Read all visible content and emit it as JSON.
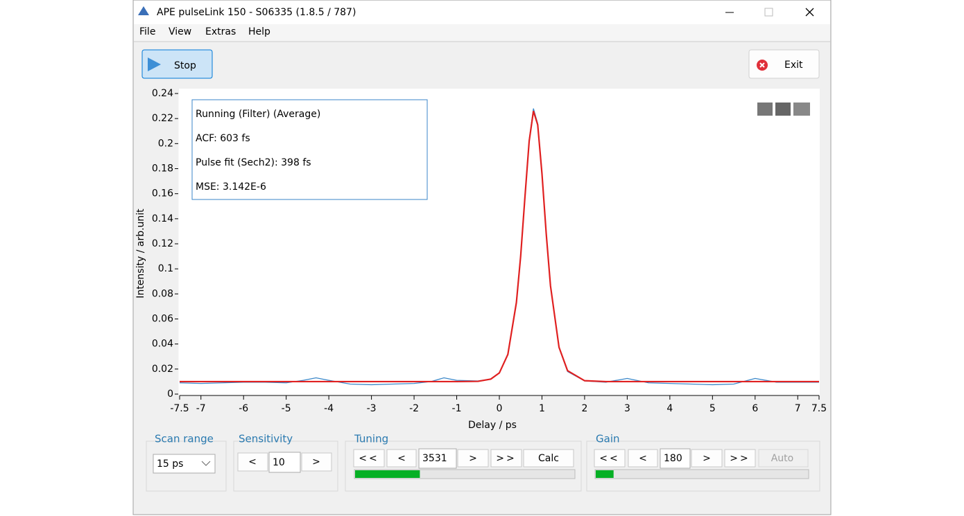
{
  "window": {
    "title": "APE pulseLink 150 - S06335 (1.8.5 / 787)"
  },
  "menu": [
    "File",
    "View",
    "Extras",
    "Help"
  ],
  "toolbar": {
    "stop": "Stop",
    "exit": "Exit"
  },
  "chart_data": {
    "type": "line",
    "xlabel": "Delay / ps",
    "ylabel": "Intensity / arb.unit",
    "annotation": [
      "Running (Filter) (Average)",
      "ACF: 603 fs",
      "Pulse fit (Sech2): 398 fs",
      "MSE: 3.142E-6"
    ],
    "xlim": [
      -7.5,
      7.5
    ],
    "xticks": [
      -7.5,
      -7,
      -6,
      -5,
      -4,
      -3,
      -2,
      -1,
      0,
      1,
      2,
      3,
      4,
      5,
      6,
      7,
      7.5
    ],
    "ylim": [
      0,
      0.24
    ],
    "yticks": [
      0,
      0.02,
      0.04,
      0.06,
      0.08,
      0.1,
      0.12,
      0.14,
      0.16,
      0.18,
      0.2,
      0.22,
      0.24
    ],
    "x": [
      -7.5,
      -7,
      -6.5,
      -6,
      -5.5,
      -5,
      -4.6,
      -4.3,
      -4,
      -3.5,
      -3,
      -2.5,
      -2,
      -1.6,
      -1.3,
      -1,
      -0.5,
      -0.2,
      0,
      0.2,
      0.4,
      0.5,
      0.6,
      0.7,
      0.8,
      0.9,
      1.0,
      1.1,
      1.2,
      1.4,
      1.6,
      2,
      2.5,
      3,
      3.5,
      4,
      4.5,
      5,
      5.5,
      6,
      6.5,
      7,
      7.5
    ],
    "series": [
      {
        "color": "#3a86c8",
        "values": [
          0.009,
          0.0085,
          0.009,
          0.0095,
          0.0095,
          0.009,
          0.011,
          0.013,
          0.011,
          0.008,
          0.0075,
          0.008,
          0.0085,
          0.01,
          0.013,
          0.011,
          0.0105,
          0.012,
          0.017,
          0.032,
          0.074,
          0.111,
          0.158,
          0.203,
          0.228,
          0.216,
          0.177,
          0.128,
          0.086,
          0.037,
          0.018,
          0.0105,
          0.0095,
          0.0125,
          0.009,
          0.0085,
          0.008,
          0.0075,
          0.008,
          0.0125,
          0.0095,
          0.0095,
          0.0095
        ]
      },
      {
        "color": "#e02020",
        "values": [
          0.01,
          0.01,
          0.01,
          0.01,
          0.01,
          0.01,
          0.01,
          0.01,
          0.01,
          0.01,
          0.01,
          0.01,
          0.01,
          0.01,
          0.01,
          0.01,
          0.0102,
          0.012,
          0.0169,
          0.0317,
          0.0731,
          0.11,
          0.157,
          0.202,
          0.226,
          0.215,
          0.176,
          0.128,
          0.0864,
          0.0374,
          0.0187,
          0.0107,
          0.01,
          0.01,
          0.01,
          0.01,
          0.01,
          0.01,
          0.01,
          0.01,
          0.01,
          0.01,
          0.01
        ]
      }
    ]
  },
  "controls": {
    "scan_range": {
      "title": "Scan range",
      "value": "15 ps"
    },
    "sensitivity": {
      "title": "Sensitivity",
      "decrease": "<",
      "value": "10",
      "increase": ">"
    },
    "tuning": {
      "title": "Tuning",
      "fast_decrease": "<<",
      "decrease": "<",
      "value": "3531",
      "increase": ">",
      "fast_increase": ">>",
      "calc": "Calc",
      "progress": 30
    },
    "gain": {
      "title": "Gain",
      "fast_decrease": "<<",
      "decrease": "<",
      "value": "180",
      "increase": ">",
      "fast_increase": ">>",
      "auto": "Auto",
      "progress": 9
    }
  }
}
